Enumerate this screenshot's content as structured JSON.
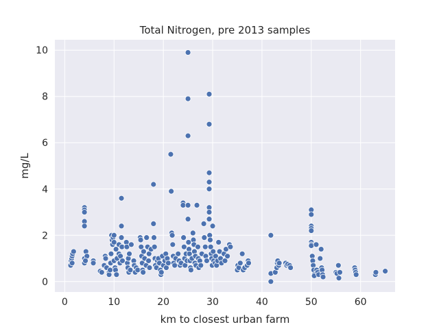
{
  "chart_data": {
    "type": "scatter",
    "title": "Total Nitrogen, pre 2013 samples",
    "xlabel": "km to closest urban farm",
    "ylabel": "mg/L",
    "xlim": [
      -2,
      67
    ],
    "ylim": [
      -0.45,
      10.45
    ],
    "x_ticks": [
      0,
      10,
      20,
      30,
      40,
      50,
      60
    ],
    "y_ticks": [
      0,
      2,
      4,
      6,
      8,
      10
    ],
    "grid": true,
    "colors": {
      "background": "#eaeaf2",
      "grid": "#ffffff",
      "marker": "#4c72b0",
      "marker_edge": "#ffffff"
    },
    "points": [
      [
        1.2,
        0.7
      ],
      [
        1.3,
        0.9
      ],
      [
        1.4,
        1.0
      ],
      [
        1.5,
        1.1
      ],
      [
        1.6,
        1.2
      ],
      [
        1.8,
        1.3
      ],
      [
        1.5,
        0.8
      ],
      [
        4.0,
        3.2
      ],
      [
        4.0,
        3.1
      ],
      [
        4.0,
        3.0
      ],
      [
        4.0,
        2.6
      ],
      [
        4.0,
        2.4
      ],
      [
        4.0,
        1.0
      ],
      [
        4.0,
        0.8
      ],
      [
        4.3,
        1.3
      ],
      [
        4.5,
        1.1
      ],
      [
        4.2,
        0.9
      ],
      [
        5.8,
        0.9
      ],
      [
        5.8,
        0.8
      ],
      [
        7.2,
        0.45
      ],
      [
        7.5,
        0.4
      ],
      [
        8.0,
        0.7
      ],
      [
        8.2,
        1.1
      ],
      [
        8.3,
        1.0
      ],
      [
        8.5,
        0.6
      ],
      [
        9.0,
        0.4
      ],
      [
        9.0,
        0.3
      ],
      [
        9.2,
        0.5
      ],
      [
        9.3,
        0.8
      ],
      [
        9.4,
        1.2
      ],
      [
        9.5,
        2.0
      ],
      [
        9.6,
        1.8
      ],
      [
        9.7,
        1.6
      ],
      [
        9.8,
        1.9
      ],
      [
        10.0,
        2.0
      ],
      [
        10.0,
        1.7
      ],
      [
        10.0,
        0.9
      ],
      [
        10.2,
        0.6
      ],
      [
        10.3,
        0.5
      ],
      [
        10.4,
        1.4
      ],
      [
        10.5,
        0.3
      ],
      [
        10.6,
        1.0
      ],
      [
        11.0,
        1.6
      ],
      [
        11.0,
        1.2
      ],
      [
        11.2,
        0.8
      ],
      [
        11.3,
        1.1
      ],
      [
        11.5,
        3.6
      ],
      [
        11.5,
        2.4
      ],
      [
        11.5,
        1.9
      ],
      [
        11.6,
        1.5
      ],
      [
        11.7,
        0.9
      ],
      [
        12.5,
        1.7
      ],
      [
        12.6,
        1.5
      ],
      [
        12.7,
        0.8
      ],
      [
        12.8,
        0.6
      ],
      [
        12.9,
        1.0
      ],
      [
        13.0,
        0.4
      ],
      [
        13.1,
        1.2
      ],
      [
        13.3,
        0.5
      ],
      [
        13.5,
        1.6
      ],
      [
        14.0,
        0.9
      ],
      [
        14.1,
        0.7
      ],
      [
        14.3,
        0.4
      ],
      [
        14.5,
        0.6
      ],
      [
        14.8,
        0.5
      ],
      [
        15.3,
        1.9
      ],
      [
        15.4,
        1.8
      ],
      [
        15.5,
        1.5
      ],
      [
        15.6,
        1.1
      ],
      [
        15.7,
        0.8
      ],
      [
        15.8,
        0.5
      ],
      [
        15.9,
        0.4
      ],
      [
        16.0,
        1.3
      ],
      [
        16.2,
        1.0
      ],
      [
        16.5,
        0.7
      ],
      [
        16.6,
        1.9
      ],
      [
        16.8,
        1.5
      ],
      [
        17.0,
        0.9
      ],
      [
        17.1,
        1.2
      ],
      [
        17.2,
        0.6
      ],
      [
        17.5,
        1.4
      ],
      [
        18.0,
        4.2
      ],
      [
        18.0,
        2.5
      ],
      [
        18.1,
        1.9
      ],
      [
        18.2,
        1.5
      ],
      [
        18.3,
        1.0
      ],
      [
        18.4,
        0.7
      ],
      [
        18.6,
        0.6
      ],
      [
        18.8,
        0.9
      ],
      [
        19.0,
        1.0
      ],
      [
        19.2,
        0.8
      ],
      [
        19.4,
        0.5
      ],
      [
        19.5,
        0.3
      ],
      [
        19.6,
        0.4
      ],
      [
        19.8,
        1.1
      ],
      [
        20.0,
        0.7
      ],
      [
        20.3,
        0.9
      ],
      [
        20.5,
        1.2
      ],
      [
        20.6,
        0.6
      ],
      [
        20.8,
        1.0
      ],
      [
        21.0,
        0.8
      ],
      [
        21.5,
        5.5
      ],
      [
        21.6,
        3.9
      ],
      [
        21.7,
        2.1
      ],
      [
        21.8,
        2.0
      ],
      [
        21.9,
        1.6
      ],
      [
        22.0,
        1.1
      ],
      [
        22.1,
        0.8
      ],
      [
        22.3,
        0.7
      ],
      [
        22.5,
        1.0
      ],
      [
        23.0,
        1.2
      ],
      [
        23.2,
        0.9
      ],
      [
        23.4,
        0.7
      ],
      [
        23.6,
        0.8
      ],
      [
        24.0,
        3.4
      ],
      [
        24.0,
        3.3
      ],
      [
        24.1,
        1.9
      ],
      [
        24.2,
        1.5
      ],
      [
        24.3,
        1.0
      ],
      [
        24.4,
        0.7
      ],
      [
        24.6,
        1.2
      ],
      [
        24.8,
        0.9
      ],
      [
        25.0,
        9.9
      ],
      [
        25.0,
        7.9
      ],
      [
        25.0,
        6.3
      ],
      [
        25.0,
        3.3
      ],
      [
        25.0,
        2.7
      ],
      [
        25.1,
        1.7
      ],
      [
        25.2,
        1.4
      ],
      [
        25.3,
        1.2
      ],
      [
        25.4,
        0.9
      ],
      [
        25.5,
        0.6
      ],
      [
        25.6,
        0.5
      ],
      [
        25.8,
        1.0
      ],
      [
        26.0,
        2.1
      ],
      [
        26.1,
        1.8
      ],
      [
        26.2,
        1.6
      ],
      [
        26.3,
        1.3
      ],
      [
        26.4,
        0.8
      ],
      [
        26.5,
        1.1
      ],
      [
        26.6,
        0.7
      ],
      [
        26.8,
        3.3
      ],
      [
        27.0,
        1.5
      ],
      [
        27.1,
        1.0
      ],
      [
        27.2,
        0.6
      ],
      [
        27.4,
        0.9
      ],
      [
        27.6,
        0.7
      ],
      [
        27.8,
        1.2
      ],
      [
        28.2,
        2.5
      ],
      [
        28.3,
        1.9
      ],
      [
        28.5,
        1.5
      ],
      [
        28.6,
        1.1
      ],
      [
        28.8,
        0.9
      ],
      [
        29.3,
        8.1
      ],
      [
        29.3,
        6.8
      ],
      [
        29.3,
        4.7
      ],
      [
        29.3,
        4.3
      ],
      [
        29.3,
        4.0
      ],
      [
        29.3,
        3.2
      ],
      [
        29.3,
        3.0
      ],
      [
        29.3,
        2.7
      ],
      [
        29.4,
        2.0
      ],
      [
        29.5,
        1.8
      ],
      [
        29.6,
        1.5
      ],
      [
        29.7,
        1.2
      ],
      [
        29.8,
        1.0
      ],
      [
        29.9,
        0.7
      ],
      [
        30.0,
        2.4
      ],
      [
        30.1,
        1.3
      ],
      [
        30.2,
        0.9
      ],
      [
        30.5,
        0.8
      ],
      [
        30.6,
        1.1
      ],
      [
        30.8,
        0.7
      ],
      [
        31.0,
        0.9
      ],
      [
        31.2,
        1.7
      ],
      [
        31.4,
        1.3
      ],
      [
        31.6,
        1.0
      ],
      [
        31.8,
        0.8
      ],
      [
        32.3,
        1.2
      ],
      [
        32.5,
        0.9
      ],
      [
        32.7,
        1.4
      ],
      [
        33.0,
        1.1
      ],
      [
        33.4,
        1.6
      ],
      [
        33.6,
        1.5
      ],
      [
        35.0,
        0.5
      ],
      [
        35.1,
        0.7
      ],
      [
        35.3,
        0.6
      ],
      [
        35.6,
        0.8
      ],
      [
        36.0,
        1.2
      ],
      [
        36.2,
        0.5
      ],
      [
        36.5,
        0.6
      ],
      [
        37.0,
        0.7
      ],
      [
        37.2,
        0.9
      ],
      [
        37.3,
        0.8
      ],
      [
        41.8,
        2.0
      ],
      [
        41.8,
        0.35
      ],
      [
        41.8,
        0.0
      ],
      [
        42.7,
        0.4
      ],
      [
        43.0,
        0.6
      ],
      [
        43.1,
        0.8
      ],
      [
        43.2,
        0.9
      ],
      [
        43.4,
        0.7
      ],
      [
        43.5,
        0.8
      ],
      [
        44.8,
        0.8
      ],
      [
        45.0,
        0.7
      ],
      [
        45.2,
        0.75
      ],
      [
        45.6,
        0.7
      ],
      [
        45.8,
        0.6
      ],
      [
        50.0,
        3.1
      ],
      [
        50.0,
        2.9
      ],
      [
        50.0,
        2.4
      ],
      [
        50.0,
        2.3
      ],
      [
        50.0,
        2.2
      ],
      [
        50.0,
        1.7
      ],
      [
        50.0,
        1.6
      ],
      [
        50.0,
        1.55
      ],
      [
        50.2,
        1.1
      ],
      [
        50.3,
        0.9
      ],
      [
        50.4,
        0.7
      ],
      [
        50.5,
        0.5
      ],
      [
        50.6,
        0.3
      ],
      [
        50.6,
        0.25
      ],
      [
        51.0,
        1.6
      ],
      [
        51.1,
        0.5
      ],
      [
        51.3,
        0.4
      ],
      [
        51.5,
        0.3
      ],
      [
        52.0,
        1.4
      ],
      [
        52.1,
        0.6
      ],
      [
        52.2,
        0.5
      ],
      [
        52.3,
        0.3
      ],
      [
        52.4,
        0.2
      ],
      [
        51.8,
        1.0
      ],
      [
        55.0,
        0.4
      ],
      [
        55.2,
        0.35
      ],
      [
        55.5,
        0.7
      ],
      [
        55.6,
        0.15
      ],
      [
        55.8,
        0.4
      ],
      [
        58.8,
        0.6
      ],
      [
        58.9,
        0.5
      ],
      [
        59.0,
        0.4
      ],
      [
        59.1,
        0.3
      ],
      [
        63.0,
        0.3
      ],
      [
        63.1,
        0.4
      ],
      [
        65.0,
        0.45
      ]
    ]
  }
}
